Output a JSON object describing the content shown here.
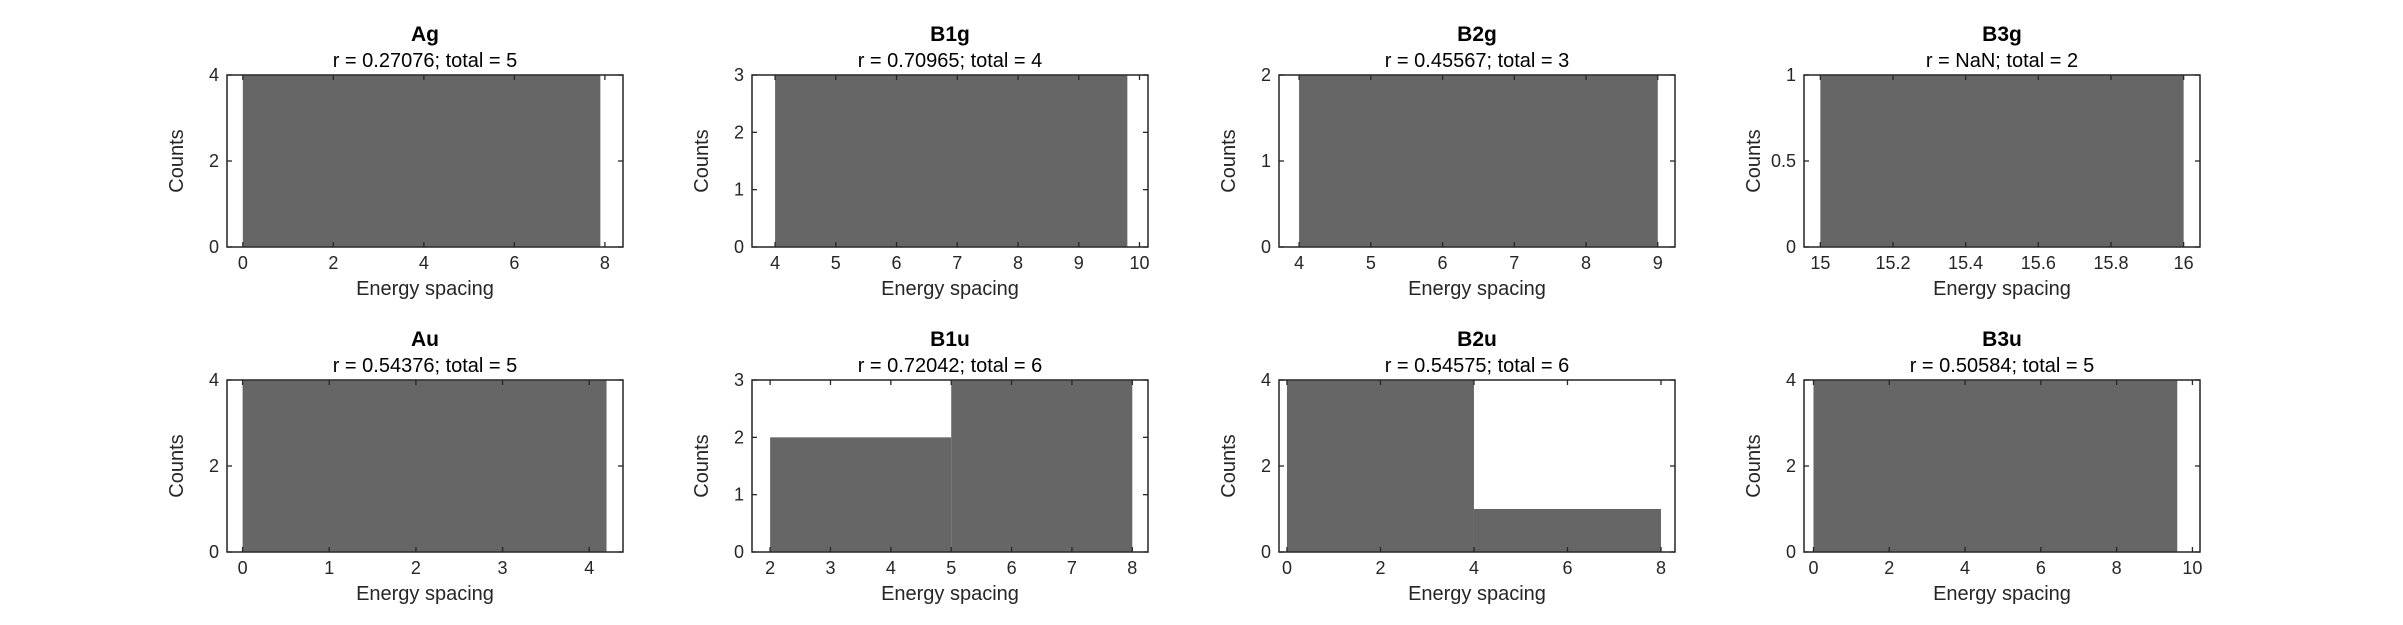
{
  "colors": {
    "bar": "#666666",
    "axis": "#262626",
    "background": "#ffffff"
  },
  "chart_data": [
    {
      "type": "bar",
      "title": "Ag",
      "subtitle": "r = 0.27076; total = 5",
      "xlabel": "Energy spacing",
      "ylabel": "Counts",
      "xlim": [
        -0.35,
        8.4
      ],
      "ylim": [
        0,
        4
      ],
      "xticks": [
        0,
        2,
        4,
        6,
        8
      ],
      "xtick_labels": [
        "0",
        "2",
        "4",
        "6",
        "8"
      ],
      "yticks": [
        0,
        2,
        4
      ],
      "ytick_labels": [
        "0",
        "2",
        "4"
      ],
      "bins": [
        {
          "x0": 0.0,
          "x1": 7.9,
          "count": 4
        }
      ]
    },
    {
      "type": "bar",
      "title": "B1g",
      "subtitle": "r = 0.70965; total = 4",
      "xlabel": "Energy spacing",
      "ylabel": "Counts",
      "xlim": [
        3.62,
        10.14
      ],
      "ylim": [
        0,
        3
      ],
      "xticks": [
        4,
        5,
        6,
        7,
        8,
        9,
        10
      ],
      "xtick_labels": [
        "4",
        "5",
        "6",
        "7",
        "8",
        "9",
        "10"
      ],
      "yticks": [
        0,
        1,
        2,
        3
      ],
      "ytick_labels": [
        "0",
        "1",
        "2",
        "3"
      ],
      "bins": [
        {
          "x0": 4.0,
          "x1": 9.8,
          "count": 3
        }
      ]
    },
    {
      "type": "bar",
      "title": "B2g",
      "subtitle": "r = 0.45567; total = 3",
      "xlabel": "Energy spacing",
      "ylabel": "Counts",
      "xlim": [
        3.72,
        9.24
      ],
      "ylim": [
        0,
        2
      ],
      "xticks": [
        4,
        5,
        6,
        7,
        8,
        9
      ],
      "xtick_labels": [
        "4",
        "5",
        "6",
        "7",
        "8",
        "9"
      ],
      "yticks": [
        0,
        1,
        2
      ],
      "ytick_labels": [
        "0",
        "1",
        "2"
      ],
      "bins": [
        {
          "x0": 4.0,
          "x1": 9.0,
          "count": 2
        }
      ]
    },
    {
      "type": "bar",
      "title": "B3g",
      "subtitle": "r = NaN; total = 2",
      "xlabel": "Energy spacing",
      "ylabel": "Counts",
      "xlim": [
        14.955,
        16.045
      ],
      "ylim": [
        0,
        1
      ],
      "xticks": [
        15,
        15.2,
        15.4,
        15.6,
        15.8,
        16
      ],
      "xtick_labels": [
        "15",
        "15.2",
        "15.4",
        "15.6",
        "15.8",
        "16"
      ],
      "yticks": [
        0,
        0.5,
        1
      ],
      "ytick_labels": [
        "0",
        "0.5",
        "1"
      ],
      "bins": [
        {
          "x0": 15.0,
          "x1": 16.0,
          "count": 1
        }
      ]
    },
    {
      "type": "bar",
      "title": "Au",
      "subtitle": "r = 0.54376; total = 5",
      "xlabel": "Energy spacing",
      "ylabel": "Counts",
      "xlim": [
        -0.18,
        4.39
      ],
      "ylim": [
        0,
        4
      ],
      "xticks": [
        0,
        1,
        2,
        3,
        4
      ],
      "xtick_labels": [
        "0",
        "1",
        "2",
        "3",
        "4"
      ],
      "yticks": [
        0,
        2,
        4
      ],
      "ytick_labels": [
        "0",
        "2",
        "4"
      ],
      "bins": [
        {
          "x0": 0.0,
          "x1": 4.2,
          "count": 4
        }
      ]
    },
    {
      "type": "bar",
      "title": "B1u",
      "subtitle": "r = 0.72042; total = 6",
      "xlabel": "Energy spacing",
      "ylabel": "Counts",
      "xlim": [
        1.7,
        8.26
      ],
      "ylim": [
        0,
        3
      ],
      "xticks": [
        2,
        3,
        4,
        5,
        6,
        7,
        8
      ],
      "xtick_labels": [
        "2",
        "3",
        "4",
        "5",
        "6",
        "7",
        "8"
      ],
      "yticks": [
        0,
        1,
        2,
        3
      ],
      "ytick_labels": [
        "0",
        "1",
        "2",
        "3"
      ],
      "bins": [
        {
          "x0": 2.0,
          "x1": 5.0,
          "count": 2
        },
        {
          "x0": 5.0,
          "x1": 8.0,
          "count": 3
        }
      ]
    },
    {
      "type": "bar",
      "title": "B2u",
      "subtitle": "r = 0.54575; total = 6",
      "xlabel": "Energy spacing",
      "ylabel": "Counts",
      "xlim": [
        -0.17,
        8.3
      ],
      "ylim": [
        0,
        4
      ],
      "xticks": [
        0,
        2,
        4,
        6,
        8
      ],
      "xtick_labels": [
        "0",
        "2",
        "4",
        "6",
        "8"
      ],
      "yticks": [
        0,
        2,
        4
      ],
      "ytick_labels": [
        "0",
        "2",
        "4"
      ],
      "bins": [
        {
          "x0": 0.0,
          "x1": 4.0,
          "count": 4
        },
        {
          "x0": 4.0,
          "x1": 8.0,
          "count": 1
        }
      ]
    },
    {
      "type": "bar",
      "title": "B3u",
      "subtitle": "r = 0.50584; total = 5",
      "xlabel": "Energy spacing",
      "ylabel": "Counts",
      "xlim": [
        -0.25,
        10.2
      ],
      "ylim": [
        0,
        4
      ],
      "xticks": [
        0,
        2,
        4,
        6,
        8,
        10
      ],
      "xtick_labels": [
        "0",
        "2",
        "4",
        "6",
        "8",
        "10"
      ],
      "yticks": [
        0,
        2,
        4
      ],
      "ytick_labels": [
        "0",
        "2",
        "4"
      ],
      "bins": [
        {
          "x0": 0.0,
          "x1": 9.6,
          "count": 4
        }
      ]
    }
  ]
}
